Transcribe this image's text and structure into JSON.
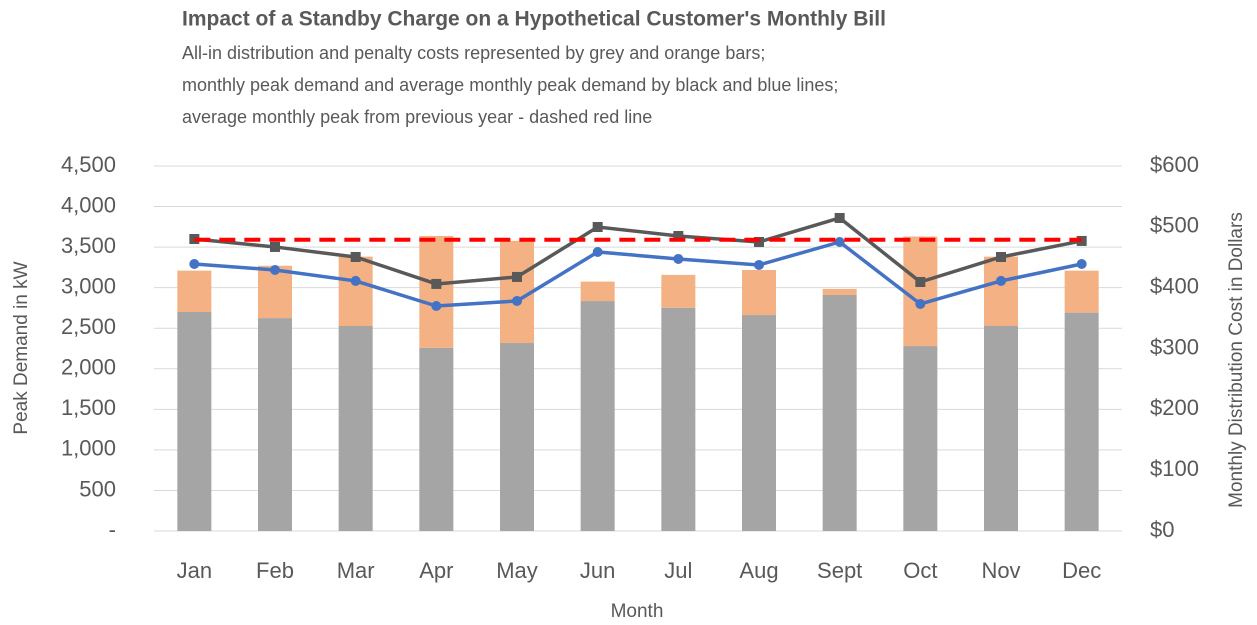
{
  "chart_data": {
    "type": "bar",
    "title": "Impact of a Standby Charge on a Hypothetical Customer's Monthly Bill",
    "subtitle": [
      "All-in distribution and penalty costs represented by grey and orange bars;",
      "monthly peak demand and average monthly peak demand by black and blue lines;",
      "average monthly peak from previous year - dashed red line"
    ],
    "x_label": "Month",
    "y_label": "Peak Demand in kW",
    "y2_label": "Monthly Distribution Cost in Dollars",
    "categories": [
      "Jan",
      "Feb",
      "Mar",
      "Apr",
      "May",
      "Jun",
      "Jul",
      "Aug",
      "Sept",
      "Oct",
      "Nov",
      "Dec"
    ],
    "ylim": [
      0,
      4500
    ],
    "yticks": [
      {
        "value": 0,
        "label": "-"
      },
      500,
      {
        "value": 1000,
        "label": "1,000"
      },
      {
        "value": 1500,
        "label": "1,500"
      },
      {
        "value": 2000,
        "label": "2,000"
      },
      {
        "value": 2500,
        "label": "2,500"
      },
      {
        "value": 3000,
        "label": "3,000"
      },
      {
        "value": 3500,
        "label": "3,500"
      },
      {
        "value": 4000,
        "label": "4,000"
      },
      {
        "value": 4500,
        "label": "4,500"
      }
    ],
    "y2lim": [
      0,
      600
    ],
    "y2ticks": [
      {
        "value": 0,
        "label": "$0"
      },
      {
        "value": 100,
        "label": "$100"
      },
      {
        "value": 200,
        "label": "$200"
      },
      {
        "value": 300,
        "label": "$300"
      },
      {
        "value": 400,
        "label": "$400"
      },
      {
        "value": 500,
        "label": "$500"
      },
      {
        "value": 600,
        "label": "$600"
      }
    ],
    "grid": true,
    "series": [
      {
        "type": "bar",
        "axis": "y2",
        "stacked": true,
        "color": "#a5a5a5",
        "values": [
          360,
          350,
          337,
          301,
          309,
          378,
          367,
          355,
          388,
          304,
          337,
          359
        ]
      },
      {
        "type": "bar",
        "axis": "y2",
        "stacked": true,
        "color": "#f4b183",
        "values": [
          68,
          86,
          114,
          184,
          168,
          32,
          54,
          74,
          10,
          180,
          114,
          69
        ]
      },
      {
        "type": "line",
        "axis": "y",
        "color": "#595959",
        "marker": "square",
        "values": [
          3600,
          3502,
          3378,
          3046,
          3132,
          3748,
          3637,
          3563,
          3859,
          3070,
          3378,
          3576
        ]
      },
      {
        "type": "line",
        "axis": "y",
        "color": "#4472c4",
        "marker": "circle",
        "values": [
          3292,
          3218,
          3083,
          2774,
          2836,
          3440,
          3354,
          3280,
          3563,
          2799,
          3083,
          3292
        ]
      },
      {
        "type": "line",
        "axis": "y",
        "color": "#ff0000",
        "dashed": true,
        "values": [
          3590,
          3590,
          3590,
          3590,
          3590,
          3590,
          3590,
          3590,
          3590,
          3590,
          3590,
          3590
        ]
      }
    ]
  }
}
